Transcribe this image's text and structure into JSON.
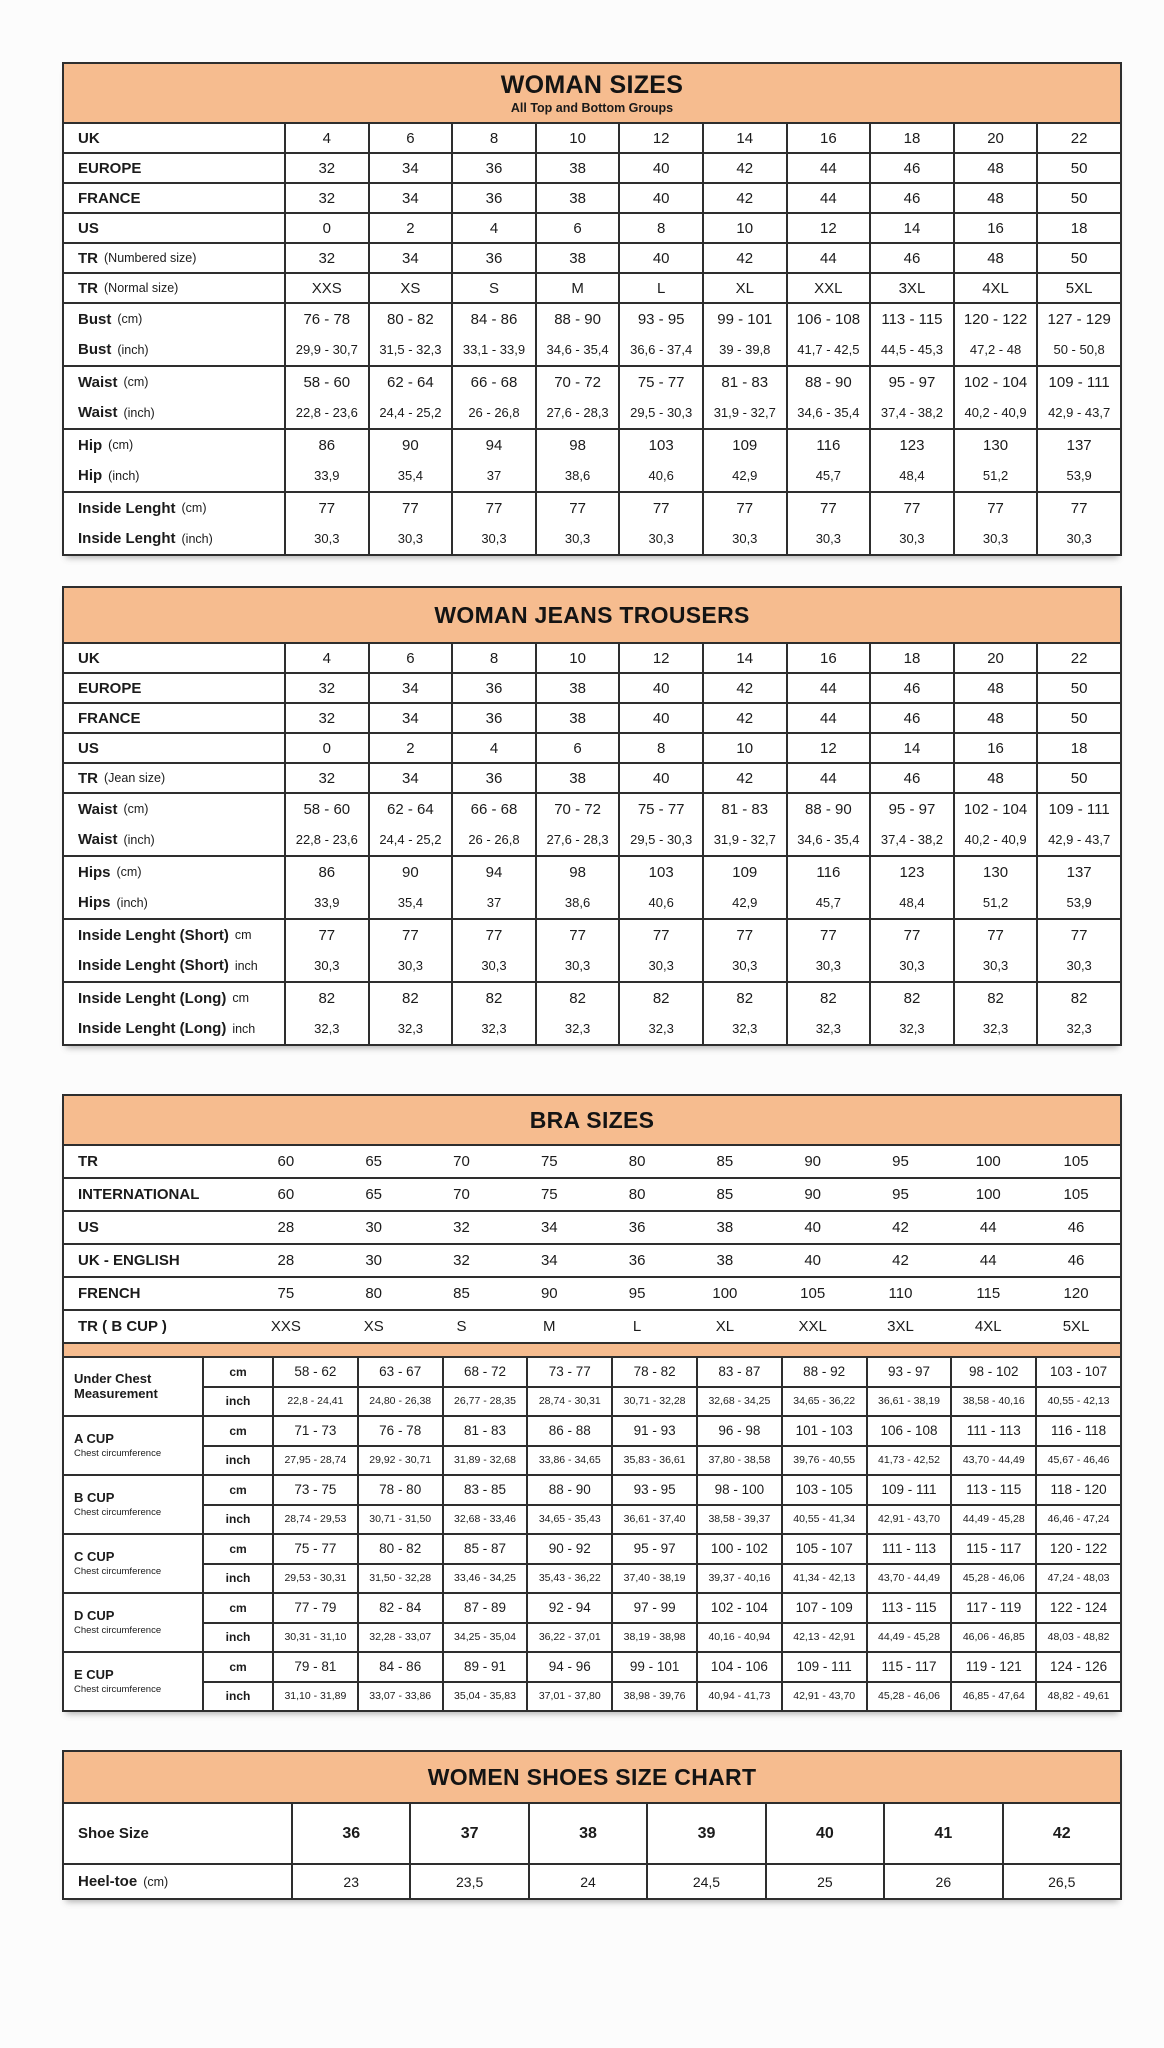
{
  "theme": {
    "header_bg": "#F6BC8F",
    "border_color": "#2e2e2e",
    "text_color": "#1b1b1b"
  },
  "woman_sizes": {
    "title": "WOMAN SIZES",
    "subtitle": "All Top and Bottom Groups",
    "single_rows": [
      {
        "label": "UK",
        "note": "",
        "values": [
          "4",
          "6",
          "8",
          "10",
          "12",
          "14",
          "16",
          "18",
          "20",
          "22"
        ]
      },
      {
        "label": "EUROPE",
        "note": "",
        "values": [
          "32",
          "34",
          "36",
          "38",
          "40",
          "42",
          "44",
          "46",
          "48",
          "50"
        ]
      },
      {
        "label": "FRANCE",
        "note": "",
        "values": [
          "32",
          "34",
          "36",
          "38",
          "40",
          "42",
          "44",
          "46",
          "48",
          "50"
        ]
      },
      {
        "label": "US",
        "note": "",
        "values": [
          "0",
          "2",
          "4",
          "6",
          "8",
          "10",
          "12",
          "14",
          "16",
          "18"
        ]
      },
      {
        "label": "TR",
        "note": "(Numbered size)",
        "values": [
          "32",
          "34",
          "36",
          "38",
          "40",
          "42",
          "44",
          "46",
          "48",
          "50"
        ]
      },
      {
        "label": "TR",
        "note": "(Normal size)",
        "values": [
          "XXS",
          "XS",
          "S",
          "M",
          "L",
          "XL",
          "XXL",
          "3XL",
          "4XL",
          "5XL"
        ]
      }
    ],
    "blocks": [
      {
        "rows": [
          {
            "label": "Bust",
            "note": "(cm)",
            "values": [
              "76 - 78",
              "80 - 82",
              "84 - 86",
              "88 - 90",
              "93 - 95",
              "99 - 101",
              "106 - 108",
              "113 - 115",
              "120 - 122",
              "127 - 129"
            ]
          },
          {
            "label": "Bust",
            "note": "(inch)",
            "values": [
              "29,9 - 30,7",
              "31,5 - 32,3",
              "33,1 - 33,9",
              "34,6 - 35,4",
              "36,6 - 37,4",
              "39 - 39,8",
              "41,7 - 42,5",
              "44,5 - 45,3",
              "47,2 - 48",
              "50 - 50,8"
            ]
          }
        ]
      },
      {
        "rows": [
          {
            "label": "Waist",
            "note": "(cm)",
            "values": [
              "58 - 60",
              "62 - 64",
              "66 - 68",
              "70 - 72",
              "75 - 77",
              "81 - 83",
              "88 - 90",
              "95 - 97",
              "102 - 104",
              "109 - 111"
            ]
          },
          {
            "label": "Waist",
            "note": "(inch)",
            "values": [
              "22,8 - 23,6",
              "24,4 - 25,2",
              "26 - 26,8",
              "27,6 - 28,3",
              "29,5 - 30,3",
              "31,9 - 32,7",
              "34,6 - 35,4",
              "37,4 - 38,2",
              "40,2 - 40,9",
              "42,9 - 43,7"
            ]
          }
        ]
      },
      {
        "rows": [
          {
            "label": "Hip",
            "note": "(cm)",
            "values": [
              "86",
              "90",
              "94",
              "98",
              "103",
              "109",
              "116",
              "123",
              "130",
              "137"
            ]
          },
          {
            "label": "Hip",
            "note": "(inch)",
            "values": [
              "33,9",
              "35,4",
              "37",
              "38,6",
              "40,6",
              "42,9",
              "45,7",
              "48,4",
              "51,2",
              "53,9"
            ]
          }
        ]
      },
      {
        "rows": [
          {
            "label": "Inside Lenght",
            "note": "(cm)",
            "values": [
              "77",
              "77",
              "77",
              "77",
              "77",
              "77",
              "77",
              "77",
              "77",
              "77"
            ]
          },
          {
            "label": "Inside Lenght",
            "note": "(inch)",
            "values": [
              "30,3",
              "30,3",
              "30,3",
              "30,3",
              "30,3",
              "30,3",
              "30,3",
              "30,3",
              "30,3",
              "30,3"
            ]
          }
        ]
      }
    ]
  },
  "jeans": {
    "title": "WOMAN JEANS TROUSERS",
    "single_rows": [
      {
        "label": "UK",
        "note": "",
        "values": [
          "4",
          "6",
          "8",
          "10",
          "12",
          "14",
          "16",
          "18",
          "20",
          "22"
        ]
      },
      {
        "label": "EUROPE",
        "note": "",
        "values": [
          "32",
          "34",
          "36",
          "38",
          "40",
          "42",
          "44",
          "46",
          "48",
          "50"
        ]
      },
      {
        "label": "FRANCE",
        "note": "",
        "values": [
          "32",
          "34",
          "36",
          "38",
          "40",
          "42",
          "44",
          "46",
          "48",
          "50"
        ]
      },
      {
        "label": "US",
        "note": "",
        "values": [
          "0",
          "2",
          "4",
          "6",
          "8",
          "10",
          "12",
          "14",
          "16",
          "18"
        ]
      },
      {
        "label": "TR",
        "note": "(Jean size)",
        "values": [
          "32",
          "34",
          "36",
          "38",
          "40",
          "42",
          "44",
          "46",
          "48",
          "50"
        ]
      }
    ],
    "blocks": [
      {
        "rows": [
          {
            "label": "Waist",
            "note": "(cm)",
            "values": [
              "58 - 60",
              "62 - 64",
              "66 - 68",
              "70 - 72",
              "75 - 77",
              "81 - 83",
              "88 - 90",
              "95 - 97",
              "102 - 104",
              "109 - 111"
            ]
          },
          {
            "label": "Waist",
            "note": "(inch)",
            "values": [
              "22,8 - 23,6",
              "24,4 - 25,2",
              "26 - 26,8",
              "27,6 - 28,3",
              "29,5 - 30,3",
              "31,9 - 32,7",
              "34,6 - 35,4",
              "37,4 - 38,2",
              "40,2 - 40,9",
              "42,9 - 43,7"
            ]
          }
        ]
      },
      {
        "rows": [
          {
            "label": "Hips",
            "note": "(cm)",
            "values": [
              "86",
              "90",
              "94",
              "98",
              "103",
              "109",
              "116",
              "123",
              "130",
              "137"
            ]
          },
          {
            "label": "Hips",
            "note": "(inch)",
            "values": [
              "33,9",
              "35,4",
              "37",
              "38,6",
              "40,6",
              "42,9",
              "45,7",
              "48,4",
              "51,2",
              "53,9"
            ]
          }
        ]
      },
      {
        "rows": [
          {
            "label": "Inside Lenght (Short)",
            "note": "cm",
            "values": [
              "77",
              "77",
              "77",
              "77",
              "77",
              "77",
              "77",
              "77",
              "77",
              "77"
            ]
          },
          {
            "label": "Inside Lenght (Short)",
            "note": "inch",
            "values": [
              "30,3",
              "30,3",
              "30,3",
              "30,3",
              "30,3",
              "30,3",
              "30,3",
              "30,3",
              "30,3",
              "30,3"
            ]
          }
        ]
      },
      {
        "rows": [
          {
            "label": "Inside Lenght (Long)",
            "note": "cm",
            "values": [
              "82",
              "82",
              "82",
              "82",
              "82",
              "82",
              "82",
              "82",
              "82",
              "82"
            ]
          },
          {
            "label": "Inside Lenght (Long)",
            "note": "inch",
            "values": [
              "32,3",
              "32,3",
              "32,3",
              "32,3",
              "32,3",
              "32,3",
              "32,3",
              "32,3",
              "32,3",
              "32,3"
            ]
          }
        ]
      }
    ]
  },
  "bra": {
    "title": "BRA SIZES",
    "unit_cm": "cm",
    "unit_inch": "inch",
    "plain_rows": [
      {
        "label": "TR",
        "note": "",
        "values": [
          "60",
          "65",
          "70",
          "75",
          "80",
          "85",
          "90",
          "95",
          "100",
          "105"
        ]
      },
      {
        "label": "INTERNATIONAL",
        "note": "",
        "values": [
          "60",
          "65",
          "70",
          "75",
          "80",
          "85",
          "90",
          "95",
          "100",
          "105"
        ]
      },
      {
        "label": "US",
        "note": "",
        "values": [
          "28",
          "30",
          "32",
          "34",
          "36",
          "38",
          "40",
          "42",
          "44",
          "46"
        ]
      },
      {
        "label": "UK - ENGLISH",
        "note": "",
        "values": [
          "28",
          "30",
          "32",
          "34",
          "36",
          "38",
          "40",
          "42",
          "44",
          "46"
        ]
      },
      {
        "label": "FRENCH",
        "note": "",
        "values": [
          "75",
          "80",
          "85",
          "90",
          "95",
          "100",
          "105",
          "110",
          "115",
          "120"
        ]
      },
      {
        "label": "TR ( B CUP )",
        "note": "",
        "values": [
          "XXS",
          "XS",
          "S",
          "M",
          "L",
          "XL",
          "XXL",
          "3XL",
          "4XL",
          "5XL"
        ]
      }
    ],
    "cups": [
      {
        "name": "Under Chest Measurement",
        "sub": "",
        "cm": [
          "58 - 62",
          "63 - 67",
          "68 - 72",
          "73 - 77",
          "78 - 82",
          "83 - 87",
          "88 - 92",
          "93 - 97",
          "98 - 102",
          "103 - 107"
        ],
        "inch": [
          "22,8 - 24,41",
          "24,80 - 26,38",
          "26,77 - 28,35",
          "28,74 - 30,31",
          "30,71 - 32,28",
          "32,68 - 34,25",
          "34,65 - 36,22",
          "36,61 - 38,19",
          "38,58 - 40,16",
          "40,55 - 42,13"
        ]
      },
      {
        "name": "A CUP",
        "sub": "Chest circumference",
        "cm": [
          "71 - 73",
          "76 - 78",
          "81 - 83",
          "86 - 88",
          "91 - 93",
          "96 - 98",
          "101 - 103",
          "106 - 108",
          "111 - 113",
          "116 - 118"
        ],
        "inch": [
          "27,95 - 28,74",
          "29,92 - 30,71",
          "31,89 - 32,68",
          "33,86 - 34,65",
          "35,83 - 36,61",
          "37,80 - 38,58",
          "39,76 - 40,55",
          "41,73 - 42,52",
          "43,70 - 44,49",
          "45,67 - 46,46"
        ]
      },
      {
        "name": "B CUP",
        "sub": "Chest circumference",
        "cm": [
          "73 - 75",
          "78 - 80",
          "83 - 85",
          "88 - 90",
          "93 - 95",
          "98 - 100",
          "103 - 105",
          "109 - 111",
          "113 - 115",
          "118 - 120"
        ],
        "inch": [
          "28,74 - 29,53",
          "30,71 - 31,50",
          "32,68 - 33,46",
          "34,65 - 35,43",
          "36,61 - 37,40",
          "38,58 - 39,37",
          "40,55 - 41,34",
          "42,91 - 43,70",
          "44,49 - 45,28",
          "46,46 - 47,24"
        ]
      },
      {
        "name": "C CUP",
        "sub": "Chest circumference",
        "cm": [
          "75 - 77",
          "80 - 82",
          "85 - 87",
          "90 - 92",
          "95 - 97",
          "100 - 102",
          "105 - 107",
          "111 - 113",
          "115 - 117",
          "120 - 122"
        ],
        "inch": [
          "29,53 - 30,31",
          "31,50 - 32,28",
          "33,46 - 34,25",
          "35,43 - 36,22",
          "37,40 - 38,19",
          "39,37 - 40,16",
          "41,34 - 42,13",
          "43,70 - 44,49",
          "45,28 - 46,06",
          "47,24 - 48,03"
        ]
      },
      {
        "name": "D CUP",
        "sub": "Chest circumference",
        "cm": [
          "77 - 79",
          "82 - 84",
          "87 - 89",
          "92 - 94",
          "97 - 99",
          "102 - 104",
          "107 - 109",
          "113 - 115",
          "117 - 119",
          "122 - 124"
        ],
        "inch": [
          "30,31 - 31,10",
          "32,28 - 33,07",
          "34,25 - 35,04",
          "36,22 - 37,01",
          "38,19 - 38,98",
          "40,16 - 40,94",
          "42,13 - 42,91",
          "44,49 - 45,28",
          "46,06 - 46,85",
          "48,03 - 48,82"
        ]
      },
      {
        "name": "E CUP",
        "sub": "Chest circumference",
        "cm": [
          "79 - 81",
          "84 - 86",
          "89 - 91",
          "94 - 96",
          "99 - 101",
          "104 - 106",
          "109 - 111",
          "115 - 117",
          "119 - 121",
          "124 - 126"
        ],
        "inch": [
          "31,10 - 31,89",
          "33,07 - 33,86",
          "35,04 - 35,83",
          "37,01 - 37,80",
          "38,98 - 39,76",
          "40,94 - 41,73",
          "42,91 - 43,70",
          "45,28 - 46,06",
          "46,85 - 47,64",
          "48,82 - 49,61"
        ]
      }
    ]
  },
  "shoes": {
    "title": "WOMEN SHOES SIZE CHART",
    "rows": [
      {
        "label": "Shoe Size",
        "note": "",
        "values": [
          "36",
          "37",
          "38",
          "39",
          "40",
          "41",
          "42"
        ]
      },
      {
        "label": "Heel-toe",
        "note": "(cm)",
        "values": [
          "23",
          "23,5",
          "24",
          "24,5",
          "25",
          "26",
          "26,5"
        ]
      }
    ]
  }
}
